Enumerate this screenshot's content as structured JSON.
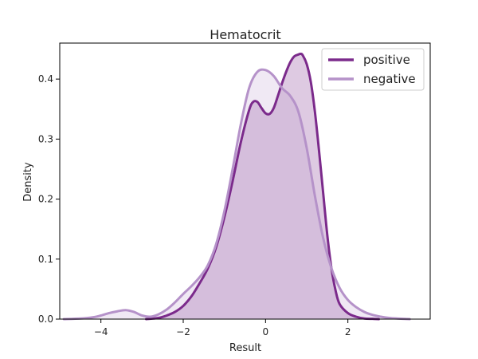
{
  "chart_data": {
    "type": "area",
    "title": "Hematocrit",
    "xlabel": "Result",
    "ylabel": "Density",
    "xlim": [
      -5.0,
      4.0
    ],
    "ylim": [
      0.0,
      0.46
    ],
    "xticks": [
      -4,
      -2,
      0,
      2
    ],
    "xtick_labels": [
      "−4",
      "−2",
      "0",
      "2"
    ],
    "yticks": [
      0.0,
      0.1,
      0.2,
      0.3,
      0.4
    ],
    "ytick_labels": [
      "0.0",
      "0.1",
      "0.2",
      "0.3",
      "0.4"
    ],
    "grid": false,
    "legend_position": "top-right",
    "series": [
      {
        "name": "positive",
        "color": "#7b2a8b",
        "x": [
          -2.9,
          -2.6,
          -2.4,
          -2.2,
          -2.0,
          -1.8,
          -1.6,
          -1.4,
          -1.2,
          -1.0,
          -0.8,
          -0.6,
          -0.4,
          -0.3,
          -0.2,
          -0.1,
          0.0,
          0.1,
          0.2,
          0.3,
          0.4,
          0.5,
          0.6,
          0.7,
          0.8,
          0.85,
          0.9,
          1.0,
          1.1,
          1.2,
          1.3,
          1.4,
          1.5,
          1.6,
          1.7,
          1.8,
          2.0,
          2.2,
          2.4,
          2.6,
          2.75
        ],
        "y": [
          0.0,
          0.002,
          0.006,
          0.012,
          0.022,
          0.038,
          0.06,
          0.085,
          0.12,
          0.17,
          0.23,
          0.295,
          0.348,
          0.362,
          0.362,
          0.352,
          0.343,
          0.342,
          0.352,
          0.372,
          0.393,
          0.412,
          0.428,
          0.438,
          0.441,
          0.442,
          0.44,
          0.425,
          0.395,
          0.345,
          0.28,
          0.21,
          0.14,
          0.085,
          0.048,
          0.025,
          0.01,
          0.004,
          0.001,
          0.0005,
          0.0
        ]
      },
      {
        "name": "negative",
        "color": "#b592c9",
        "x": [
          -4.9,
          -4.5,
          -4.2,
          -4.0,
          -3.8,
          -3.6,
          -3.4,
          -3.2,
          -3.0,
          -2.8,
          -2.6,
          -2.4,
          -2.2,
          -2.0,
          -1.8,
          -1.6,
          -1.4,
          -1.2,
          -1.0,
          -0.8,
          -0.6,
          -0.4,
          -0.2,
          0.0,
          0.2,
          0.4,
          0.6,
          0.8,
          1.0,
          1.2,
          1.4,
          1.6,
          1.8,
          2.0,
          2.2,
          2.4,
          2.6,
          2.8,
          3.0,
          3.2,
          3.5
        ],
        "y": [
          0.0,
          0.001,
          0.003,
          0.006,
          0.01,
          0.013,
          0.015,
          0.012,
          0.006,
          0.004,
          0.008,
          0.016,
          0.028,
          0.042,
          0.055,
          0.07,
          0.09,
          0.125,
          0.18,
          0.25,
          0.325,
          0.385,
          0.412,
          0.415,
          0.405,
          0.385,
          0.372,
          0.345,
          0.285,
          0.205,
          0.135,
          0.085,
          0.052,
          0.032,
          0.02,
          0.012,
          0.007,
          0.004,
          0.002,
          0.001,
          0.0
        ]
      }
    ]
  }
}
